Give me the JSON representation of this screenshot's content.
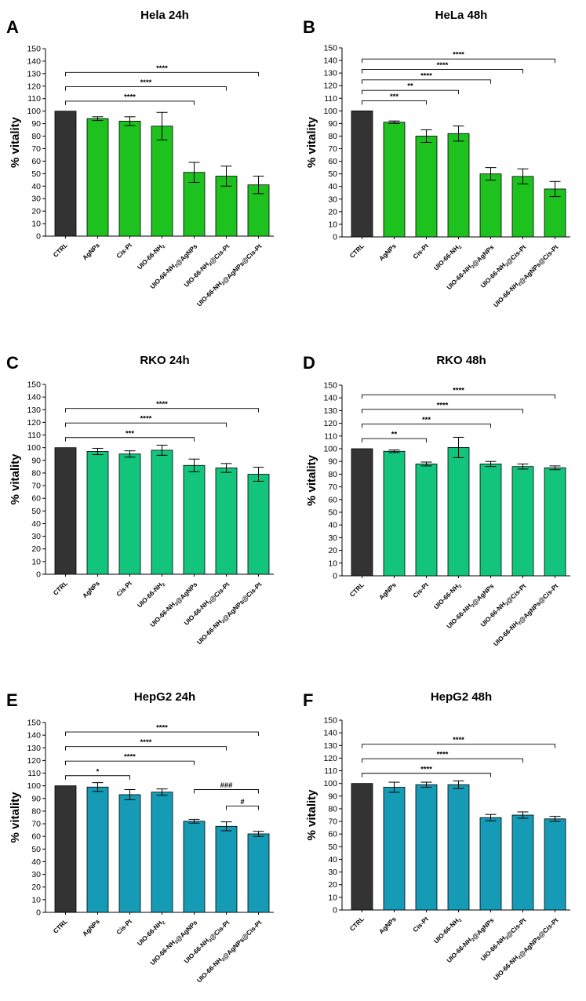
{
  "colors": {
    "ctrl": "#333333",
    "hela": "#1ec21e",
    "rko": "#12c47c",
    "hepg2": "#169bb6"
  },
  "chart_data": [
    {
      "type": "bar",
      "panel": "A",
      "title": "Hela 24h",
      "ylabel": "% vitality",
      "ylim": [
        0,
        150
      ],
      "ytick_step": 10,
      "color_key": "hela",
      "categories": [
        "CTRL",
        "AgNPs",
        "Cis-Pt",
        "UIO-66-NH2",
        "UIO-66-NH2@AgNPs",
        "UIO-66-NH2@Cis-Pt",
        "UIO-66-NH2@AgNPs@Cis-Pt"
      ],
      "values": [
        100,
        94,
        92,
        88,
        51,
        48,
        41
      ],
      "errors": [
        0,
        1.5,
        3.5,
        11,
        8,
        8,
        7
      ],
      "significance": [
        {
          "from": "CTRL",
          "to": "UIO-66-NH2@AgNPs",
          "label": "****"
        },
        {
          "from": "CTRL",
          "to": "UIO-66-NH2@Cis-Pt",
          "label": "****"
        },
        {
          "from": "CTRL",
          "to": "UIO-66-NH2@AgNPs@Cis-Pt",
          "label": "****"
        }
      ]
    },
    {
      "type": "bar",
      "panel": "B",
      "title": "HeLa 48h",
      "ylabel": "% vitality",
      "ylim": [
        0,
        150
      ],
      "ytick_step": 10,
      "color_key": "hela",
      "categories": [
        "CTRL",
        "AgNPs",
        "Cis-Pt",
        "UIO-66-NH2",
        "UIO-66-NH2@AgNPs",
        "UIO-66-NH2@Cis-Pt",
        "UIO-66-NH2@AgNPs@Cis-Pt"
      ],
      "values": [
        100,
        91,
        80,
        82,
        50,
        48,
        38
      ],
      "errors": [
        0,
        1,
        5,
        6,
        5,
        6,
        6
      ],
      "significance": [
        {
          "from": "CTRL",
          "to": "Cis-Pt",
          "label": "***"
        },
        {
          "from": "CTRL",
          "to": "UIO-66-NH2",
          "label": "**"
        },
        {
          "from": "CTRL",
          "to": "UIO-66-NH2@AgNPs",
          "label": "****"
        },
        {
          "from": "CTRL",
          "to": "UIO-66-NH2@Cis-Pt",
          "label": "****"
        },
        {
          "from": "CTRL",
          "to": "UIO-66-NH2@AgNPs@Cis-Pt",
          "label": "****"
        }
      ]
    },
    {
      "type": "bar",
      "panel": "C",
      "title": "RKO 24h",
      "ylabel": "% vitality",
      "ylim": [
        0,
        150
      ],
      "ytick_step": 10,
      "color_key": "rko",
      "categories": [
        "CTRL",
        "AgNPs",
        "Cis-Pt",
        "UIO-66-NH2",
        "UIO-66-NH2@AgNPs",
        "UIO-66-NH2@Cis-Pt",
        "UIO-66-NH2@AgNPs@Cis-Pt"
      ],
      "values": [
        100,
        97,
        95,
        98,
        86,
        84,
        79
      ],
      "errors": [
        0,
        2.5,
        2.5,
        4,
        5,
        3.5,
        5.5
      ],
      "significance": [
        {
          "from": "CTRL",
          "to": "UIO-66-NH2@AgNPs",
          "label": "***"
        },
        {
          "from": "CTRL",
          "to": "UIO-66-NH2@Cis-Pt",
          "label": "****"
        },
        {
          "from": "CTRL",
          "to": "UIO-66-NH2@AgNPs@Cis-Pt",
          "label": "****"
        }
      ]
    },
    {
      "type": "bar",
      "panel": "D",
      "title": "RKO 48h",
      "ylabel": "% vitality",
      "ylim": [
        0,
        150
      ],
      "ytick_step": 10,
      "color_key": "rko",
      "categories": [
        "CTRL",
        "AgNPs",
        "Cis-Pt",
        "UIO-66-NH2",
        "UIO-66-NH2@AgNPs",
        "UIO-66-NH2@Cis-Pt",
        "UIO-66-NH2@AgNPs@Cis-Pt"
      ],
      "values": [
        100,
        98,
        88,
        101,
        88,
        86,
        85
      ],
      "errors": [
        0,
        1,
        1.5,
        8,
        2,
        2,
        1.5
      ],
      "significance": [
        {
          "from": "CTRL",
          "to": "Cis-Pt",
          "label": "**"
        },
        {
          "from": "CTRL",
          "to": "UIO-66-NH2@AgNPs",
          "label": "***"
        },
        {
          "from": "CTRL",
          "to": "UIO-66-NH2@Cis-Pt",
          "label": "****"
        },
        {
          "from": "CTRL",
          "to": "UIO-66-NH2@AgNPs@Cis-Pt",
          "label": "****"
        }
      ]
    },
    {
      "type": "bar",
      "panel": "E",
      "title": "HepG2 24h",
      "ylabel": "% vitality",
      "ylim": [
        0,
        150
      ],
      "ytick_step": 10,
      "color_key": "hepg2",
      "categories": [
        "CTRL",
        "AgNPs",
        "Cis-Pt",
        "UIO-66-NH2",
        "UIO-66-NH2@AgNPs",
        "UIO-66-NH2@Cis-Pt",
        "UIO-66-NH2@AgNPs@Cis-Pt"
      ],
      "values": [
        100,
        99,
        93,
        95,
        72,
        68,
        62
      ],
      "errors": [
        0,
        3.5,
        4,
        2.5,
        1.5,
        3.5,
        2
      ],
      "significance": [
        {
          "from": "CTRL",
          "to": "Cis-Pt",
          "label": "*"
        },
        {
          "from": "CTRL",
          "to": "UIO-66-NH2@AgNPs",
          "label": "****"
        },
        {
          "from": "CTRL",
          "to": "UIO-66-NH2@Cis-Pt",
          "label": "****"
        },
        {
          "from": "CTRL",
          "to": "UIO-66-NH2@AgNPs@Cis-Pt",
          "label": "****"
        },
        {
          "from": "UIO-66-NH2@AgNPs",
          "to": "UIO-66-NH2@AgNPs@Cis-Pt",
          "label": "###"
        },
        {
          "from": "UIO-66-NH2@Cis-Pt",
          "to": "UIO-66-NH2@AgNPs@Cis-Pt",
          "label": "#"
        }
      ]
    },
    {
      "type": "bar",
      "panel": "F",
      "title": "HepG2 48h",
      "ylabel": "% vitality",
      "ylim": [
        0,
        150
      ],
      "ytick_step": 10,
      "color_key": "hepg2",
      "categories": [
        "CTRL",
        "AgNPs",
        "Cis-Pt",
        "UIO-66-NH2",
        "UIO-66-NH2@AgNPs",
        "UIO-66-NH2@Cis-Pt",
        "UIO-66-NH2@AgNPs@Cis-Pt"
      ],
      "values": [
        100,
        97,
        99,
        99,
        73,
        75,
        72
      ],
      "errors": [
        0,
        4,
        2,
        3,
        2.5,
        2.5,
        2
      ],
      "significance": [
        {
          "from": "CTRL",
          "to": "UIO-66-NH2@AgNPs",
          "label": "****"
        },
        {
          "from": "CTRL",
          "to": "UIO-66-NH2@Cis-Pt",
          "label": "****"
        },
        {
          "from": "CTRL",
          "to": "UIO-66-NH2@AgNPs@Cis-Pt",
          "label": "****"
        }
      ]
    }
  ]
}
